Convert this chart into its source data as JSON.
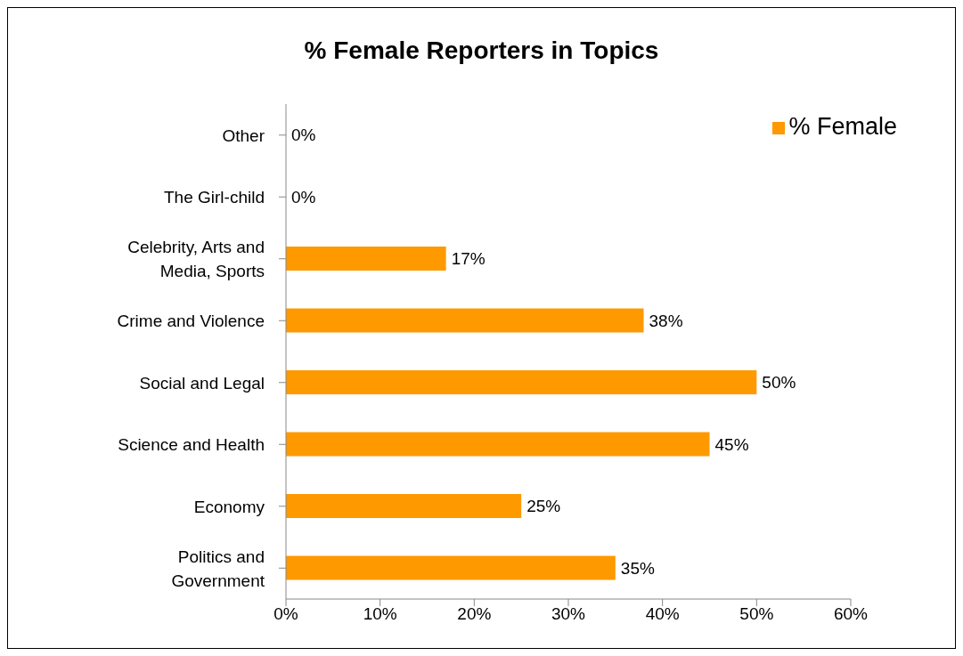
{
  "chart_data": {
    "type": "bar",
    "orientation": "horizontal",
    "title": "% Female Reporters in Topics",
    "categories": [
      "Other",
      "The Girl-child",
      "Celebrity, Arts and Media, Sports",
      "Crime and Violence",
      "Social and Legal",
      "Science and Health",
      "Economy",
      "Politics and Government"
    ],
    "series": [
      {
        "name": "% Female",
        "color": "#ff9900",
        "values": [
          0,
          0,
          17,
          38,
          50,
          45,
          25,
          35
        ],
        "value_labels": [
          "0%",
          "0%",
          "17%",
          "38%",
          "50%",
          "45%",
          "25%",
          "35%"
        ]
      }
    ],
    "xlim": [
      0,
      60
    ],
    "xticks": [
      {
        "value": 0,
        "label": "0%"
      },
      {
        "value": 10,
        "label": "10%"
      },
      {
        "value": 20,
        "label": "20%"
      },
      {
        "value": 30,
        "label": "30%"
      },
      {
        "value": 40,
        "label": "40%"
      },
      {
        "value": 50,
        "label": "50%"
      },
      {
        "value": 60,
        "label": "60%"
      }
    ],
    "grid": false,
    "legend": "top right"
  }
}
